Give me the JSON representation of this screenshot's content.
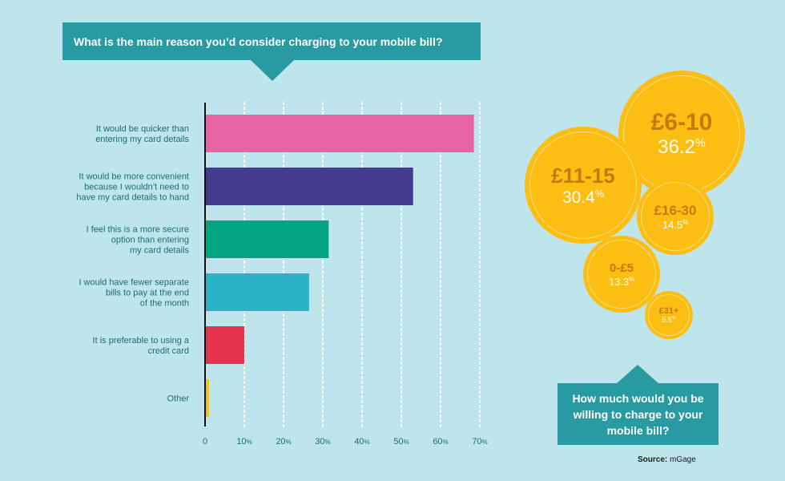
{
  "question": "What is the main reason you’d consider charging to your mobile bill?",
  "chart_data": [
    {
      "type": "bar",
      "orientation": "horizontal",
      "title": "What is the main reason you’d consider charging to your mobile bill?",
      "categories": [
        [
          "It would be quicker than",
          "entering my card details"
        ],
        [
          "It would be more convenient",
          "because I wouldn’t need to",
          "have my card details to hand"
        ],
        [
          "I feel this is a more secure",
          "option than entering",
          "my card details"
        ],
        [
          "I would have fewer separate",
          "bills to pay at the end",
          "of the month"
        ],
        [
          "It is preferable to using a",
          "credit card"
        ],
        [
          "Other"
        ]
      ],
      "values": [
        68.5,
        53,
        31.5,
        26.5,
        10,
        1
      ],
      "colors": [
        "#e863a1",
        "#453c8f",
        "#03a583",
        "#2db3c7",
        "#e2344c",
        "#fcbe12"
      ],
      "xlim": [
        0,
        70
      ],
      "xticks": [
        0,
        10,
        20,
        30,
        40,
        50,
        60,
        70
      ],
      "grid": true
    },
    {
      "type": "bubble",
      "title": "How much would you be willing to charge to your mobile bill?",
      "categories": [
        "£6-10",
        "£11-15",
        "£16-30",
        "0-£5",
        "£31+"
      ],
      "values": [
        36.2,
        30.4,
        14.5,
        13.3,
        5.5
      ],
      "color": "#fcbe12"
    }
  ],
  "bubbles": [
    {
      "range": "£6-10",
      "value": "36.2"
    },
    {
      "range": "£11-15",
      "value": "30.4"
    },
    {
      "range": "£16-30",
      "value": "14.5"
    },
    {
      "range": "0-£5",
      "value": "13.3"
    },
    {
      "range": "£31+",
      "value": "5.5"
    }
  ],
  "bubble_question": "How much would you be willing to charge to your mobile bill?",
  "source_label": "Source:",
  "source_value": "mGage"
}
